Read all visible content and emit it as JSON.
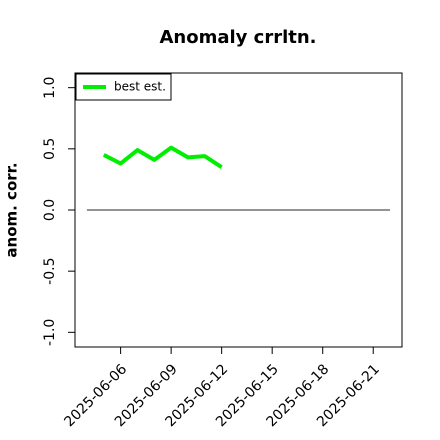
{
  "chart_data": {
    "type": "line",
    "title": "Anomaly crrltn.",
    "ylabel": "anom. corr.",
    "x": [
      "2025-06-05",
      "2025-06-06",
      "2025-06-07",
      "2025-06-08",
      "2025-06-09",
      "2025-06-10",
      "2025-06-11",
      "2025-06-12"
    ],
    "series": [
      {
        "name": "best est.",
        "color": "#00ee00",
        "values": [
          0.45,
          0.38,
          0.49,
          0.41,
          0.51,
          0.43,
          0.44,
          0.35
        ]
      }
    ],
    "reference_line": {
      "y": 0,
      "x": [
        "2025-06-04",
        "2025-06-22"
      ],
      "color": "#555555"
    },
    "xlim": [
      "2025-06-03T07:00",
      "2025-06-22T17:00"
    ],
    "xticks": [
      "2025-06-06",
      "2025-06-09",
      "2025-06-12",
      "2025-06-15",
      "2025-06-18",
      "2025-06-21"
    ],
    "ylim": [
      -1.12,
      1.12
    ],
    "yticks": [
      {
        "value": -1,
        "label": "-1.0"
      },
      {
        "value": -0.5,
        "label": "-0.5"
      },
      {
        "value": 0,
        "label": "0.0"
      },
      {
        "value": 0.5,
        "label": "0.5"
      },
      {
        "value": 1,
        "label": "1.0"
      }
    ],
    "legend": "top-left",
    "grid": false
  }
}
